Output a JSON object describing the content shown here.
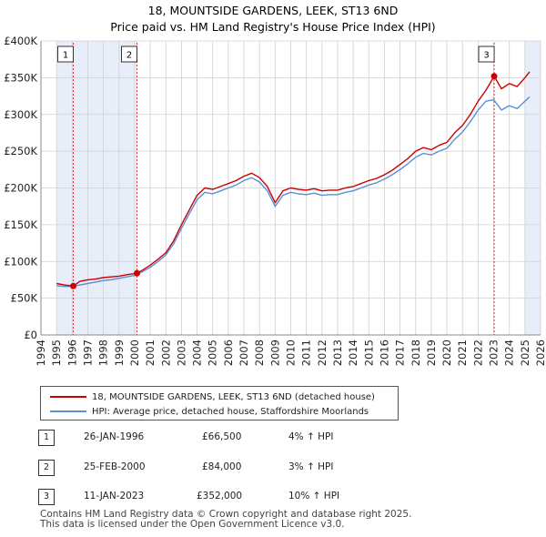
{
  "chart_data": {
    "type": "line",
    "title": "18, MOUNTSIDE GARDENS, LEEK, ST13 6ND",
    "subtitle": "Price paid vs. HM Land Registry's House Price Index (HPI)",
    "xlabel": "",
    "ylabel": "",
    "xlim": [
      1994,
      2026
    ],
    "ylim": [
      0,
      400000
    ],
    "grid": true,
    "x_ticks": [
      "1994",
      "1995",
      "1996",
      "1997",
      "1998",
      "1999",
      "2000",
      "2001",
      "2002",
      "2003",
      "2004",
      "2005",
      "2006",
      "2007",
      "2008",
      "2009",
      "2010",
      "2011",
      "2012",
      "2013",
      "2014",
      "2015",
      "2016",
      "2017",
      "2018",
      "2019",
      "2020",
      "2021",
      "2022",
      "2023",
      "2024",
      "2025",
      "2026"
    ],
    "y_ticks": [
      {
        "value": 0,
        "label": "£0"
      },
      {
        "value": 50000,
        "label": "£50K"
      },
      {
        "value": 100000,
        "label": "£100K"
      },
      {
        "value": 150000,
        "label": "£150K"
      },
      {
        "value": 200000,
        "label": "£200K"
      },
      {
        "value": 250000,
        "label": "£250K"
      },
      {
        "value": 300000,
        "label": "£300K"
      },
      {
        "value": 350000,
        "label": "£350K"
      },
      {
        "value": 400000,
        "label": "£400K"
      }
    ],
    "shaded_ranges": [
      [
        1995.0,
        1996.07
      ],
      [
        1996.07,
        2000.15
      ],
      [
        2025.0,
        2026.0
      ]
    ],
    "series": [
      {
        "name": "18, MOUNTSIDE GARDENS, LEEK, ST13 6ND (detached house)",
        "color": "#cc0000",
        "x": [
          1995.0,
          1995.5,
          1996.07,
          1996.5,
          1997.0,
          1997.5,
          1998.0,
          1998.5,
          1999.0,
          1999.5,
          2000.15,
          2000.5,
          2001.0,
          2001.5,
          2002.0,
          2002.5,
          2003.0,
          2003.5,
          2004.0,
          2004.5,
          2005.0,
          2005.5,
          2006.0,
          2006.5,
          2007.0,
          2007.5,
          2008.0,
          2008.5,
          2009.0,
          2009.5,
          2010.0,
          2010.5,
          2011.0,
          2011.5,
          2012.0,
          2012.5,
          2013.0,
          2013.5,
          2014.0,
          2014.5,
          2015.0,
          2015.5,
          2016.0,
          2016.5,
          2017.0,
          2017.5,
          2018.0,
          2018.5,
          2019.0,
          2019.5,
          2020.0,
          2020.5,
          2021.0,
          2021.5,
          2022.0,
          2022.5,
          2023.03,
          2023.5,
          2024.0,
          2024.5,
          2025.0,
          2025.3
        ],
        "y": [
          70000,
          68000,
          66500,
          73000,
          75000,
          76000,
          78000,
          79000,
          80000,
          82000,
          84000,
          88000,
          95000,
          103000,
          112000,
          128000,
          150000,
          170000,
          190000,
          200000,
          198000,
          202000,
          206000,
          210000,
          216000,
          220000,
          214000,
          202000,
          180000,
          196000,
          200000,
          198000,
          197000,
          199000,
          196000,
          197000,
          197000,
          200000,
          202000,
          206000,
          210000,
          213000,
          218000,
          224000,
          232000,
          240000,
          250000,
          255000,
          252000,
          258000,
          262000,
          275000,
          285000,
          300000,
          318000,
          333000,
          352000,
          335000,
          342000,
          338000,
          350000,
          358000
        ]
      },
      {
        "name": "HPI: Average price, detached house, Staffordshire Moorlands",
        "color": "#5b8fd4",
        "x": [
          1995.0,
          1995.5,
          1996.0,
          1996.5,
          1997.0,
          1997.5,
          1998.0,
          1998.5,
          1999.0,
          1999.5,
          2000.0,
          2000.5,
          2001.0,
          2001.5,
          2002.0,
          2002.5,
          2003.0,
          2003.5,
          2004.0,
          2004.5,
          2005.0,
          2005.5,
          2006.0,
          2006.5,
          2007.0,
          2007.5,
          2008.0,
          2008.5,
          2009.0,
          2009.5,
          2010.0,
          2010.5,
          2011.0,
          2011.5,
          2012.0,
          2012.5,
          2013.0,
          2013.5,
          2014.0,
          2014.5,
          2015.0,
          2015.5,
          2016.0,
          2016.5,
          2017.0,
          2017.5,
          2018.0,
          2018.5,
          2019.0,
          2019.5,
          2020.0,
          2020.5,
          2021.0,
          2021.5,
          2022.0,
          2022.5,
          2023.0,
          2023.5,
          2024.0,
          2024.5,
          2025.0,
          2025.3
        ],
        "y": [
          67000,
          66000,
          66000,
          68000,
          70000,
          72000,
          74000,
          75000,
          77000,
          79000,
          81000,
          86000,
          92000,
          100000,
          109000,
          124000,
          145000,
          165000,
          184000,
          194000,
          192000,
          196000,
          200000,
          204000,
          210000,
          214000,
          208000,
          196000,
          175000,
          190000,
          194000,
          192000,
          191000,
          193000,
          190000,
          191000,
          191000,
          194000,
          196000,
          200000,
          204000,
          207000,
          212000,
          218000,
          225000,
          233000,
          242000,
          247000,
          245000,
          250000,
          254000,
          266000,
          276000,
          290000,
          306000,
          318000,
          320000,
          306000,
          312000,
          308000,
          318000,
          324000
        ]
      }
    ],
    "sales": [
      {
        "marker": "1",
        "date": "26-JAN-1996",
        "x": 1996.07,
        "price": 66500,
        "price_label": "£66,500",
        "hpi": "4% ↑ HPI"
      },
      {
        "marker": "2",
        "date": "25-FEB-2000",
        "x": 2000.15,
        "price": 84000,
        "price_label": "£84,000",
        "hpi": "3% ↑ HPI"
      },
      {
        "marker": "3",
        "date": "11-JAN-2023",
        "x": 2023.03,
        "price": 352000,
        "price_label": "£352,000",
        "hpi": "10% ↑ HPI"
      }
    ]
  },
  "footer": {
    "line1": "Contains HM Land Registry data © Crown copyright and database right 2025.",
    "line2": "This data is licensed under the Open Government Licence v3.0."
  }
}
